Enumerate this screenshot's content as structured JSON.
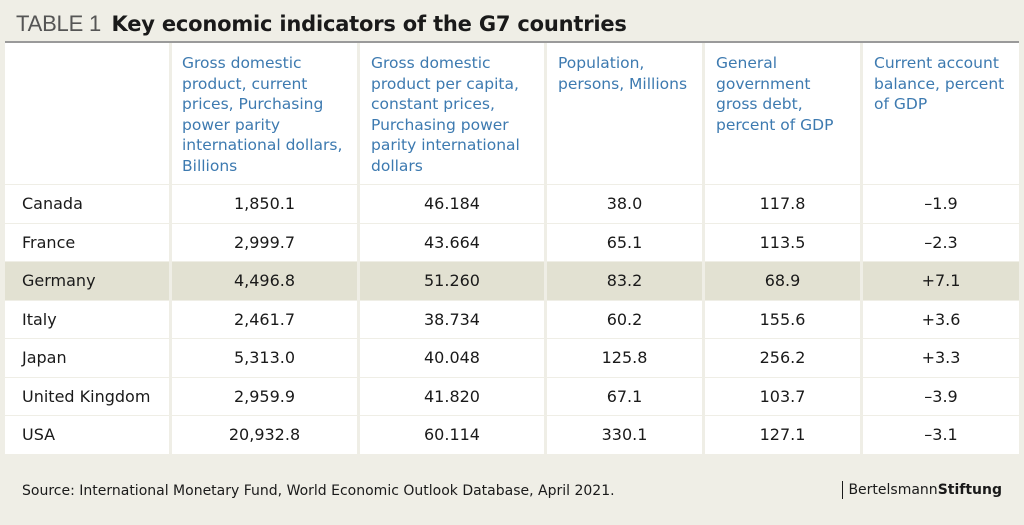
{
  "title": {
    "label": "TABLE 1",
    "text": "Key economic indicators of the G7 countries"
  },
  "columns": [
    "",
    "Gross domestic product, current prices, Purchasing power parity international dollars, Billions",
    "Gross domestic product per capita, constant prices, Purchasing power parity international dollars",
    "Population, persons, Millions",
    "General government gross debt, percent of GDP",
    "Current account balance, percent of GDP"
  ],
  "rows": [
    {
      "country": "Canada",
      "gdp": "1,850.1",
      "gdp_pc": "46.184",
      "pop": "38.0",
      "debt": "117.8",
      "cab": "–1.9",
      "highlight": false
    },
    {
      "country": "France",
      "gdp": "2,999.7",
      "gdp_pc": "43.664",
      "pop": "65.1",
      "debt": "113.5",
      "cab": "–2.3",
      "highlight": false
    },
    {
      "country": "Germany",
      "gdp": "4,496.8",
      "gdp_pc": "51.260",
      "pop": "83.2",
      "debt": "68.9",
      "cab": "+7.1",
      "highlight": true
    },
    {
      "country": "Italy",
      "gdp": "2,461.7",
      "gdp_pc": "38.734",
      "pop": "60.2",
      "debt": "155.6",
      "cab": "+3.6",
      "highlight": false
    },
    {
      "country": "Japan",
      "gdp": "5,313.0",
      "gdp_pc": "40.048",
      "pop": "125.8",
      "debt": "256.2",
      "cab": "+3.3",
      "highlight": false
    },
    {
      "country": "United Kingdom",
      "gdp": "2,959.9",
      "gdp_pc": "41.820",
      "pop": "67.1",
      "debt": "103.7",
      "cab": "–3.9",
      "highlight": false
    },
    {
      "country": "USA",
      "gdp": "20,932.8",
      "gdp_pc": "60.114",
      "pop": "330.1",
      "debt": "127.1",
      "cab": "–3.1",
      "highlight": false
    }
  ],
  "source": "Source: International Monetary Fund, World Economic Outlook Database, April 2021.",
  "logo": {
    "part1": "Bertelsmann",
    "part2": "Stiftung"
  },
  "colors": {
    "header_text": "#3d7ab0",
    "highlight_row": "#e2e1d2",
    "background": "#efeee6"
  }
}
